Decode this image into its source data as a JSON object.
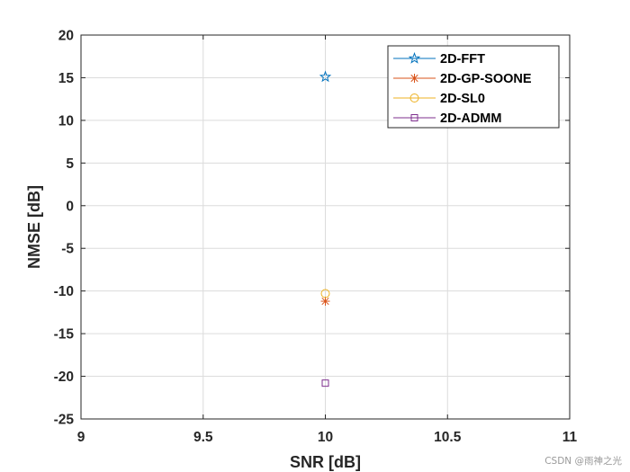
{
  "chart_data": {
    "type": "scatter",
    "xlabel": "SNR [dB]",
    "ylabel": "NMSE [dB]",
    "xlim": [
      9,
      11
    ],
    "ylim": [
      -25,
      20
    ],
    "xticks": [
      9,
      9.5,
      10,
      10.5,
      11
    ],
    "xtick_labels": [
      "9",
      "9.5",
      "10",
      "10.5",
      "11"
    ],
    "yticks": [
      20,
      15,
      10,
      5,
      0,
      -5,
      -10,
      -15,
      -20,
      -25
    ],
    "ytick_labels": [
      "20",
      "15",
      "10",
      "5",
      "0",
      "-5",
      "-10",
      "-15",
      "-20",
      "-25"
    ],
    "grid": true,
    "legend_position": "top-right",
    "series": [
      {
        "name": "2D-FFT",
        "marker": "pentagram",
        "color": "#0072BD",
        "x": [
          10
        ],
        "y": [
          15.1
        ]
      },
      {
        "name": "2D-GP-SOONE",
        "marker": "asterisk",
        "color": "#D95319",
        "x": [
          10
        ],
        "y": [
          -11.2
        ]
      },
      {
        "name": "2D-SL0",
        "marker": "circle",
        "color": "#EDB120",
        "x": [
          10
        ],
        "y": [
          -10.3
        ]
      },
      {
        "name": "2D-ADMM",
        "marker": "square",
        "color": "#7E2F8E",
        "x": [
          10
        ],
        "y": [
          -20.8
        ]
      }
    ]
  },
  "watermark": "CSDN @雨神之光"
}
